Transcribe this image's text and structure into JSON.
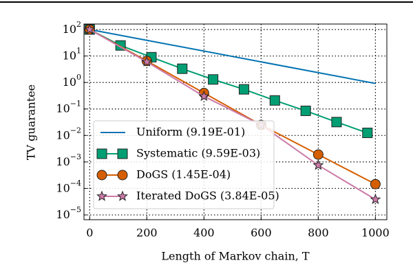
{
  "chart_data": {
    "type": "line",
    "xlabel": "Length of Markov chain, T",
    "ylabel": "TV guarantee",
    "xlim": [
      -20,
      1040
    ],
    "ylim": [
      6.6e-06,
      161
    ],
    "log_y": true,
    "grid": true,
    "legend": "lower left",
    "xticks": [
      0,
      200,
      400,
      600,
      800,
      1000
    ],
    "yticks": [
      {
        "value": 100,
        "label": "10^2"
      },
      {
        "value": 10,
        "label": "10^1"
      },
      {
        "value": 1,
        "label": "10^0"
      },
      {
        "value": 0.1,
        "label": "10^−1"
      },
      {
        "value": 0.01,
        "label": "10^−2"
      },
      {
        "value": 0.001,
        "label": "10^−3"
      },
      {
        "value": 0.0001,
        "label": "10^−4"
      },
      {
        "value": 1e-05,
        "label": "10^−5"
      }
    ],
    "series": [
      {
        "name": "Uniform (9.19E-01)",
        "color": "#0072b2",
        "marker": "none",
        "x": [
          0,
          1000
        ],
        "values": [
          100,
          0.919
        ]
      },
      {
        "name": "Systematic (9.59E-03)",
        "color": "#009e73",
        "marker": "square",
        "x": [
          0,
          108,
          216,
          324,
          432,
          540,
          648,
          756,
          864,
          972
        ],
        "values": [
          100,
          25,
          9,
          3.3,
          1.3,
          0.55,
          0.21,
          0.085,
          0.032,
          0.0125
        ]
      },
      {
        "name": "DoGS (1.45E-04)",
        "color": "#d55e00",
        "marker": "circle",
        "x": [
          0,
          200,
          400,
          600,
          800,
          1000
        ],
        "values": [
          100,
          6.5,
          0.4,
          0.025,
          0.0019,
          0.000145
        ]
      },
      {
        "name": "Iterated DoGS (3.84E-05)",
        "color": "#cc79a7",
        "marker": "star",
        "x": [
          0,
          200,
          400,
          600,
          800,
          1000
        ],
        "values": [
          100,
          6,
          0.3,
          0.025,
          0.00075,
          3.84e-05
        ]
      }
    ]
  }
}
